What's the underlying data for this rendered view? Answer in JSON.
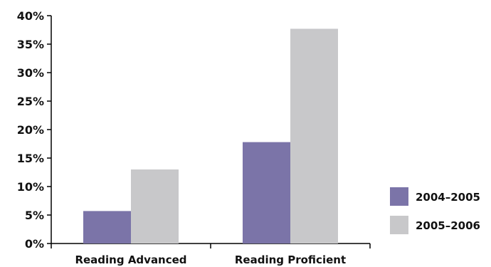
{
  "chart_data": {
    "type": "bar",
    "title": "",
    "xlabel": "",
    "ylabel": "",
    "categories": [
      "Reading Advanced",
      "Reading Proficient"
    ],
    "series": [
      {
        "name": "2004–2005",
        "values": [
          5.7,
          17.8
        ],
        "color": "#7b74a8"
      },
      {
        "name": "2005–2006",
        "values": [
          13.0,
          37.7
        ],
        "color": "#c8c8ca"
      }
    ],
    "ylim": [
      0,
      40
    ],
    "yticks": [
      "0%",
      "5%",
      "10%",
      "15%",
      "20%",
      "25%",
      "30%",
      "35%",
      "40%"
    ],
    "grid": false,
    "legend_position": "right"
  }
}
